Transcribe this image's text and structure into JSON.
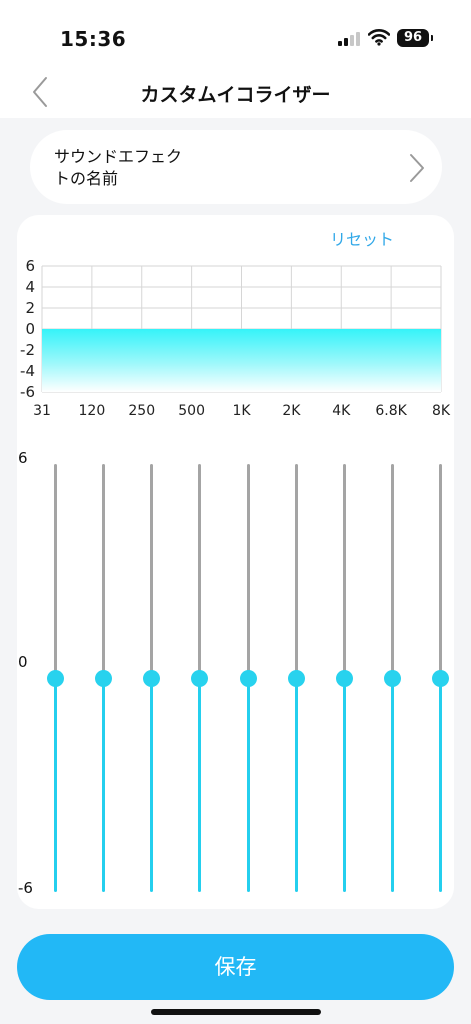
{
  "status": {
    "time": "15:36",
    "battery": "96"
  },
  "header": {
    "title": "カスタムイコライザー",
    "back_icon": "chevron-left-icon"
  },
  "sound_effect": {
    "label_line1": "サウンドエフェク",
    "label_line2": "トの名前",
    "chevron_icon": "chevron-right-icon"
  },
  "equalizer": {
    "reset_label": "リセット",
    "slider_scale": {
      "top": "6",
      "middle": "0",
      "bottom": "-6"
    },
    "bands": [
      {
        "label": "31",
        "gain": 0
      },
      {
        "label": "120",
        "gain": 0
      },
      {
        "label": "250",
        "gain": 0
      },
      {
        "label": "500",
        "gain": 0
      },
      {
        "label": "1K",
        "gain": 0
      },
      {
        "label": "2K",
        "gain": 0
      },
      {
        "label": "4K",
        "gain": 0
      },
      {
        "label": "6.8K",
        "gain": 0
      },
      {
        "label": "8K",
        "gain": 0
      }
    ]
  },
  "chart_data": {
    "type": "area",
    "categories": [
      "31",
      "120",
      "250",
      "500",
      "1K",
      "2K",
      "4K",
      "6.8K",
      "8K"
    ],
    "values": [
      0,
      0,
      0,
      0,
      0,
      0,
      0,
      0,
      0
    ],
    "yticks": [
      "6",
      "4",
      "2",
      "0",
      "-2",
      "-4",
      "-6"
    ],
    "ylim": [
      -6,
      6
    ],
    "grid": true,
    "fill_color": "#35f3f9"
  },
  "colors": {
    "accent": "#22b8f6",
    "slider_active": "#24cfee",
    "slider_inactive": "#a4a4a4",
    "link": "#31a8e8"
  },
  "actions": {
    "save_label": "保存"
  }
}
